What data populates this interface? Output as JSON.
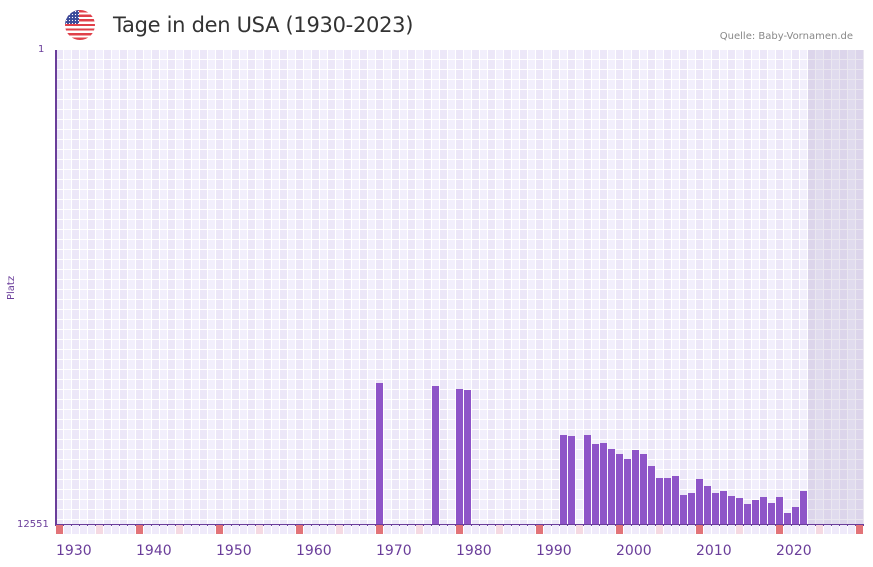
{
  "header": {
    "flag_icon": "us-flag-icon",
    "title": "Tage in den USA (1930-2023)",
    "source": "Quelle: Baby-Vornamen.de"
  },
  "colors": {
    "bar": "#8e55c8",
    "axis": "#6a3d9a",
    "decade_marker": "#e27378",
    "half_decade_marker": "#f5d9e2",
    "grid_dark": "#ece7f8",
    "grid_light": "#f2effc"
  },
  "chart_data": {
    "type": "bar",
    "title": "Tage in den USA (1930-2023)",
    "xlabel": "",
    "ylabel": "Platz",
    "y_inverted": true,
    "ylim": [
      1,
      12551
    ],
    "xlim": [
      1930,
      2030
    ],
    "y_tick_labels": [
      "1",
      "12551"
    ],
    "x_tick_labels": [
      "1930",
      "1940",
      "1950",
      "1960",
      "1970",
      "1980",
      "1990",
      "2000",
      "2010",
      "2020"
    ],
    "future_shaded_from": 2024,
    "grid": true,
    "legend": null,
    "categories": [
      1970,
      1977,
      1980,
      1981,
      1993,
      1994,
      1996,
      1997,
      1998,
      1999,
      2000,
      2001,
      2002,
      2003,
      2004,
      2005,
      2006,
      2007,
      2008,
      2009,
      2010,
      2011,
      2012,
      2013,
      2014,
      2015,
      2016,
      2017,
      2018,
      2019,
      2020,
      2021,
      2022,
      2023
    ],
    "values": [
      8831,
      8909,
      8989,
      9015,
      10194,
      10220,
      10194,
      10432,
      10398,
      10564,
      10697,
      10829,
      10591,
      10697,
      11015,
      11332,
      11332,
      11280,
      11782,
      11729,
      11359,
      11545,
      11729,
      11677,
      11809,
      11862,
      12021,
      11915,
      11836,
      11994,
      11836,
      12259,
      12100,
      11677
    ]
  }
}
